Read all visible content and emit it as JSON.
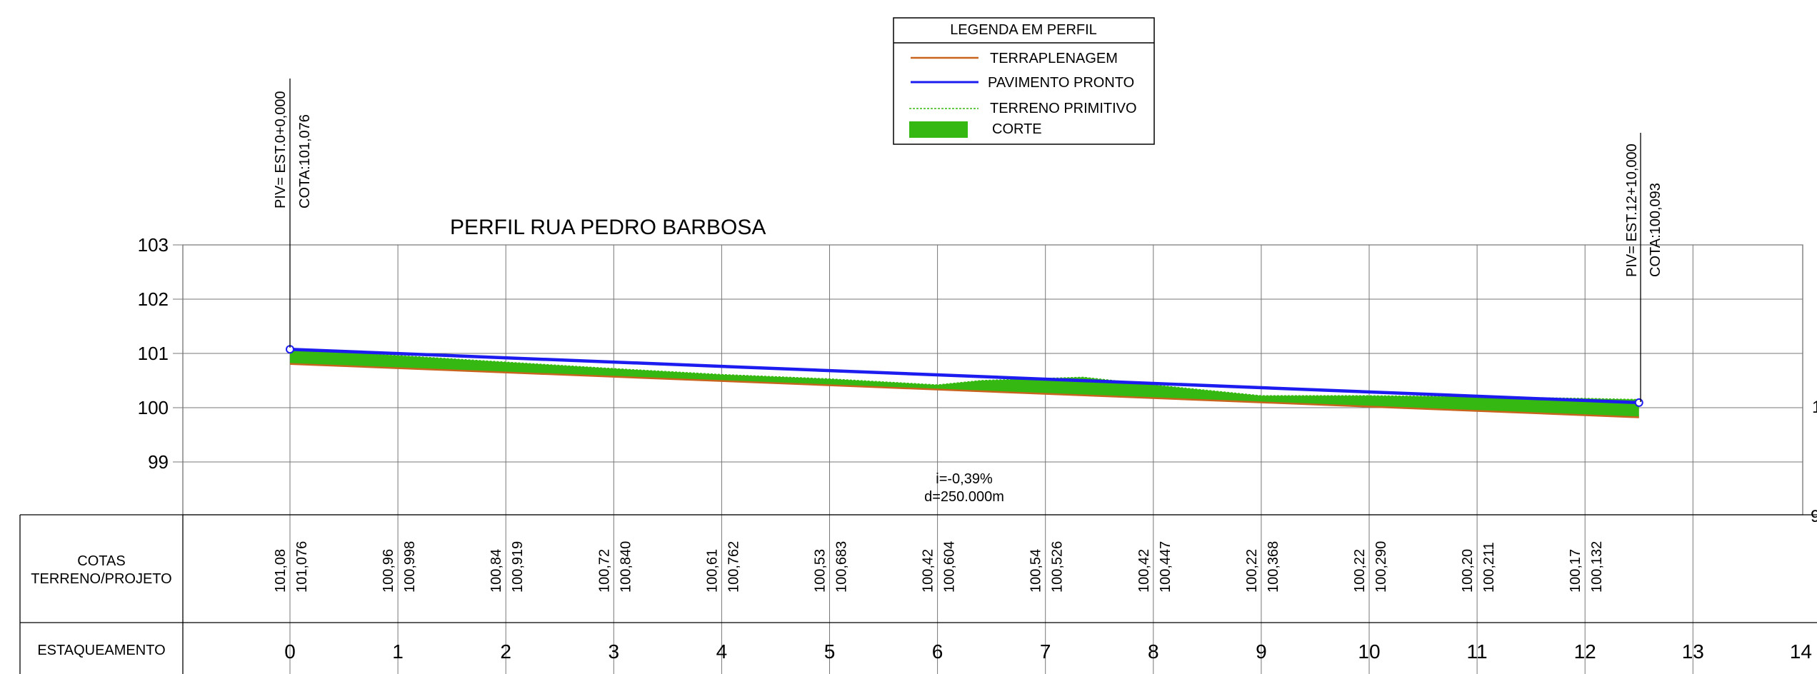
{
  "legend": {
    "title": "LEGENDA EM PERFIL",
    "items": [
      {
        "label": "TERRAPLENAGEM",
        "style": "line",
        "color": "#c8641e"
      },
      {
        "label": "PAVIMENTO PRONTO",
        "style": "line",
        "color": "#1c1cf0"
      },
      {
        "label": "TERRENO PRIMITIVO",
        "style": "dashed",
        "color": "#36b812"
      },
      {
        "label": "CORTE",
        "style": "fill",
        "color": "#36b812"
      }
    ]
  },
  "title": "PERFIL RUA PEDRO BARBOSA",
  "piv_start": {
    "station": "PIV= EST.0+0,000",
    "elevation": "COTA:101,076"
  },
  "piv_end": {
    "station": "PIV= EST.12+10,000",
    "elevation": "COTA:100,093"
  },
  "slope_annotation": {
    "grade": "i=-0,39%",
    "distance": "d=250.000m"
  },
  "table": {
    "cotas_label_line1": "COTAS",
    "cotas_label_line2": "TERRENO/PROJETO",
    "estaqueamento_label": "ESTAQUEAMENTO",
    "stations": [
      "0",
      "1",
      "2",
      "3",
      "4",
      "5",
      "6",
      "7",
      "8",
      "9",
      "10",
      "11",
      "12",
      "13",
      "14"
    ],
    "terrain_values": [
      "101,08",
      "100,96",
      "100,84",
      "100,72",
      "100,61",
      "100,53",
      "100,42",
      "100,54",
      "100,42",
      "100,22",
      "100,22",
      "100,20",
      "100,17"
    ],
    "project_values": [
      "101,076",
      "100,998",
      "100,919",
      "100,840",
      "100,762",
      "100,683",
      "100,604",
      "100,526",
      "100,447",
      "100,368",
      "100,290",
      "100,211",
      "100,132"
    ]
  },
  "chart_data": {
    "type": "line",
    "title": "PERFIL RUA PEDRO BARBOSA",
    "xlabel": "",
    "ylabel": "",
    "x_ticks": [
      "0",
      "1",
      "2",
      "3",
      "4",
      "5",
      "6",
      "7",
      "8",
      "9",
      "10",
      "11",
      "12",
      "13",
      "14"
    ],
    "y_ticks": [
      99,
      100,
      101,
      102,
      103
    ],
    "ylim": [
      98,
      103
    ],
    "xlim": [
      0,
      14
    ],
    "grid": true,
    "series": [
      {
        "name": "PAVIMENTO PRONTO",
        "color": "#1c1cf0",
        "x": [
          0,
          12.5
        ],
        "y": [
          101.076,
          100.093
        ]
      },
      {
        "name": "TERRENO PRIMITIVO",
        "color": "#36b812",
        "x": [
          0,
          1,
          2,
          3,
          4,
          5,
          6,
          6.4,
          7,
          7.35,
          8,
          8.6,
          9,
          10,
          11,
          12,
          12.5
        ],
        "y": [
          101.08,
          100.96,
          100.84,
          100.72,
          100.61,
          100.53,
          100.42,
          100.5,
          100.54,
          100.56,
          100.42,
          100.3,
          100.22,
          100.22,
          100.2,
          100.17,
          100.15
        ]
      },
      {
        "name": "TERRAPLENAGEM",
        "color": "#c8641e",
        "x": [
          0,
          12.5
        ],
        "y": [
          100.806,
          99.823
        ]
      }
    ],
    "piv_points": [
      {
        "x": 0,
        "y": 101.076
      },
      {
        "x": 12.5,
        "y": 100.093
      }
    ]
  }
}
